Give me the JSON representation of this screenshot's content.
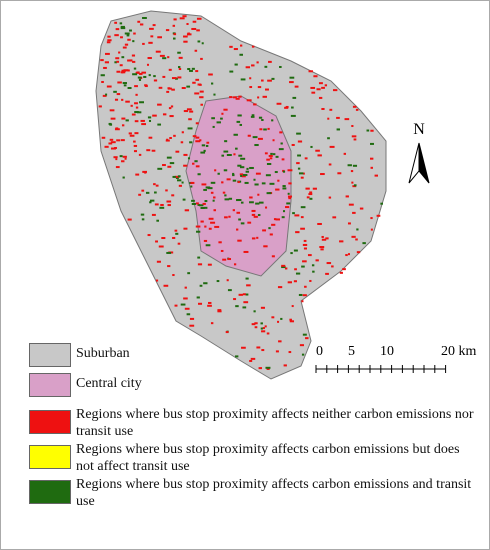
{
  "north_arrow": {
    "label": "N"
  },
  "scale_bar": {
    "labels": [
      "0",
      "5",
      "10",
      "20 km"
    ]
  },
  "legend": {
    "items": [
      {
        "label": "Suburban",
        "color": "#c8c8c8"
      },
      {
        "label": "Central city",
        "color": "#d9a0c8"
      },
      {
        "label": "Regions where bus stop proximity affects neither carbon emissions nor transit use",
        "color": "#ee1111"
      },
      {
        "label": "Regions where bus stop proximity affects carbon emissions but does not affect transit use",
        "color": "#ffff00"
      },
      {
        "label": "Regions where bus stop proximity affects carbon emissions and transit use",
        "color": "#1f6b10"
      }
    ]
  }
}
